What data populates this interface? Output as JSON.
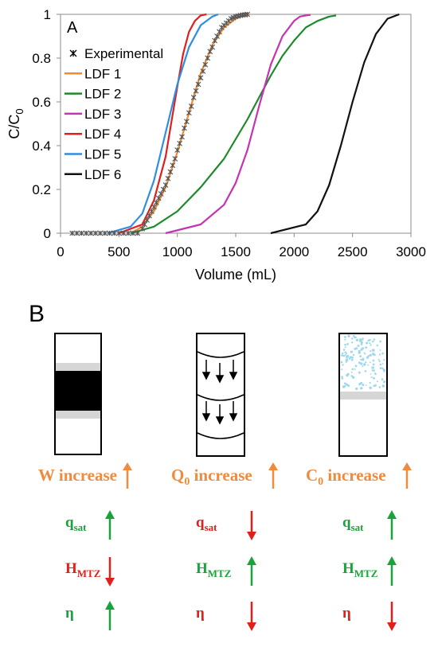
{
  "panel_a": {
    "panel_letter": "A",
    "chart_data": {
      "type": "line",
      "xlabel": "Volume (mL)",
      "ylabel_main": "C/C",
      "ylabel_sub": "0",
      "xlim": [
        0,
        3000
      ],
      "ylim": [
        0,
        1
      ],
      "x_ticks": [
        "0",
        "500",
        "1000",
        "1500",
        "2000",
        "2500",
        "3000"
      ],
      "y_ticks": [
        "0",
        "0.2",
        "0.4",
        "0.6",
        "0.8",
        "1"
      ],
      "grid": false,
      "legend_position": "top-left",
      "series": [
        {
          "name": "Experimental",
          "kind": "markers",
          "color": "#555555",
          "x": [
            100,
            140,
            180,
            220,
            260,
            300,
            340,
            380,
            420,
            460,
            500,
            540,
            580,
            620,
            660,
            700,
            720,
            740,
            760,
            780,
            800,
            820,
            840,
            860,
            880,
            900,
            920,
            940,
            960,
            980,
            1000,
            1020,
            1040,
            1060,
            1080,
            1100,
            1120,
            1140,
            1160,
            1180,
            1200,
            1220,
            1240,
            1260,
            1280,
            1300,
            1320,
            1340,
            1360,
            1380,
            1400,
            1420,
            1440,
            1460,
            1480,
            1500,
            1520,
            1540,
            1560,
            1580,
            1600
          ],
          "y": [
            0,
            0,
            0,
            0,
            0,
            0,
            0,
            0,
            0,
            0,
            0,
            0,
            0,
            0,
            0,
            0.02,
            0.04,
            0.06,
            0.08,
            0.1,
            0.12,
            0.14,
            0.16,
            0.18,
            0.2,
            0.22,
            0.25,
            0.28,
            0.31,
            0.34,
            0.38,
            0.41,
            0.44,
            0.48,
            0.51,
            0.55,
            0.58,
            0.62,
            0.65,
            0.68,
            0.71,
            0.74,
            0.77,
            0.8,
            0.83,
            0.85,
            0.88,
            0.9,
            0.92,
            0.94,
            0.95,
            0.96,
            0.97,
            0.98,
            0.985,
            0.99,
            0.992,
            0.995,
            0.997,
            0.998,
            1.0
          ]
        },
        {
          "name": "LDF 1",
          "color": "#f58a32",
          "x": [
            600,
            700,
            800,
            900,
            1000,
            1100,
            1200,
            1300,
            1400,
            1500,
            1580,
            1620
          ],
          "y": [
            0,
            0.03,
            0.1,
            0.21,
            0.37,
            0.55,
            0.73,
            0.86,
            0.94,
            0.98,
            1.0,
            1.0
          ]
        },
        {
          "name": "LDF 2",
          "color": "#1e8a2e",
          "x": [
            600,
            800,
            1000,
            1200,
            1400,
            1600,
            1700,
            1800,
            1900,
            2000,
            2100,
            2200,
            2300,
            2360
          ],
          "y": [
            0,
            0.03,
            0.1,
            0.21,
            0.34,
            0.52,
            0.62,
            0.72,
            0.81,
            0.88,
            0.94,
            0.97,
            0.99,
            0.995
          ]
        },
        {
          "name": "LDF 3",
          "color": "#c433b4",
          "x": [
            900,
            1200,
            1400,
            1500,
            1600,
            1700,
            1800,
            1900,
            2000,
            2050,
            2100,
            2140
          ],
          "y": [
            0,
            0.04,
            0.13,
            0.23,
            0.38,
            0.58,
            0.77,
            0.9,
            0.97,
            0.99,
            0.995,
            0.998
          ]
        },
        {
          "name": "LDF 4",
          "color": "#e11e1e",
          "x": [
            500,
            700,
            800,
            900,
            950,
            1000,
            1050,
            1100,
            1150,
            1200,
            1250
          ],
          "y": [
            0,
            0.04,
            0.15,
            0.35,
            0.51,
            0.67,
            0.82,
            0.92,
            0.97,
            0.995,
            1.0
          ]
        },
        {
          "name": "LDF 5",
          "color": "#2f8ee0",
          "x": [
            400,
            600,
            700,
            800,
            900,
            1000,
            1100,
            1200,
            1300,
            1350
          ],
          "y": [
            0,
            0.03,
            0.09,
            0.24,
            0.46,
            0.68,
            0.85,
            0.95,
            0.99,
            1.0
          ]
        },
        {
          "name": "LDF 6",
          "color": "#111111",
          "x": [
            1800,
            2100,
            2200,
            2300,
            2400,
            2500,
            2600,
            2700,
            2800,
            2900
          ],
          "y": [
            0,
            0.04,
            0.1,
            0.22,
            0.4,
            0.6,
            0.78,
            0.91,
            0.98,
            1.0
          ]
        }
      ]
    }
  },
  "panel_b": {
    "panel_letter": "B",
    "columns": [
      {
        "increase_label": "W increase",
        "arrow_color": "#f08a3c",
        "effects": [
          {
            "label": "q",
            "sub": "sat",
            "color": "#1aa33a",
            "direction": "up"
          },
          {
            "label": "H",
            "sub": "MTZ",
            "color": "#e0201a",
            "direction": "down"
          },
          {
            "label": "η",
            "sub": "",
            "color": "#1aa33a",
            "direction": "up"
          }
        ]
      },
      {
        "increase_label": "Q",
        "increase_sub": "0",
        "increase_suffix": " increase",
        "arrow_color": "#f08a3c",
        "effects": [
          {
            "label": "q",
            "sub": "sat",
            "color": "#e0201a",
            "direction": "down"
          },
          {
            "label": "H",
            "sub": "MTZ",
            "color": "#1aa33a",
            "direction": "up"
          },
          {
            "label": "η",
            "sub": "",
            "color": "#e0201a",
            "direction": "down"
          }
        ]
      },
      {
        "increase_label": "C",
        "increase_sub": "0",
        "increase_suffix": " increase",
        "arrow_color": "#f08a3c",
        "effects": [
          {
            "label": "q",
            "sub": "sat",
            "color": "#1aa33a",
            "direction": "up"
          },
          {
            "label": "H",
            "sub": "MTZ",
            "color": "#1aa33a",
            "direction": "up"
          },
          {
            "label": "η",
            "sub": "",
            "color": "#e0201a",
            "direction": "down"
          }
        ]
      }
    ]
  }
}
